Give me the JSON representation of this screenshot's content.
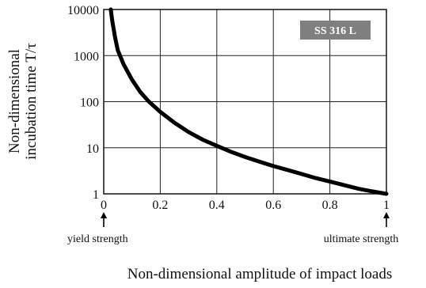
{
  "chart_data": {
    "type": "line",
    "title": "",
    "xlabel": "Non-dimensional amplitude of impact loads",
    "ylabel_line1": "Non-dimensional",
    "ylabel_line2": "incubation time T/τ",
    "xlim": [
      0,
      1
    ],
    "ylim": [
      1,
      10000
    ],
    "y_scale": "log",
    "grid": true,
    "x_ticks": [
      0,
      0.2,
      0.4,
      0.6,
      0.8,
      1
    ],
    "x_tick_labels": [
      "0",
      "0.2",
      "0.4",
      "0.6",
      "0.8",
      "1"
    ],
    "y_ticks": [
      1,
      10,
      100,
      1000,
      10000
    ],
    "y_tick_labels": [
      "1",
      "10",
      "100",
      "1000",
      "10000"
    ],
    "series": [
      {
        "color": "#000000",
        "x": [
          0.025,
          0.03,
          0.04,
          0.05,
          0.07,
          0.1,
          0.13,
          0.16,
          0.2,
          0.25,
          0.3,
          0.35,
          0.4,
          0.45,
          0.5,
          0.55,
          0.6,
          0.65,
          0.7,
          0.75,
          0.8,
          0.85,
          0.9,
          0.95,
          1.0
        ],
        "y": [
          10000,
          5800,
          2500,
          1300,
          650,
          300,
          160,
          100,
          60,
          35,
          22,
          15,
          11,
          8.2,
          6.3,
          5.0,
          4.0,
          3.3,
          2.7,
          2.2,
          1.85,
          1.55,
          1.3,
          1.13,
          1.0
        ]
      }
    ],
    "badge": {
      "text": "SS 316 L",
      "fill": "#7f7f7f"
    },
    "annotations": {
      "left": "yield strength",
      "right": "ultimate strength"
    }
  }
}
